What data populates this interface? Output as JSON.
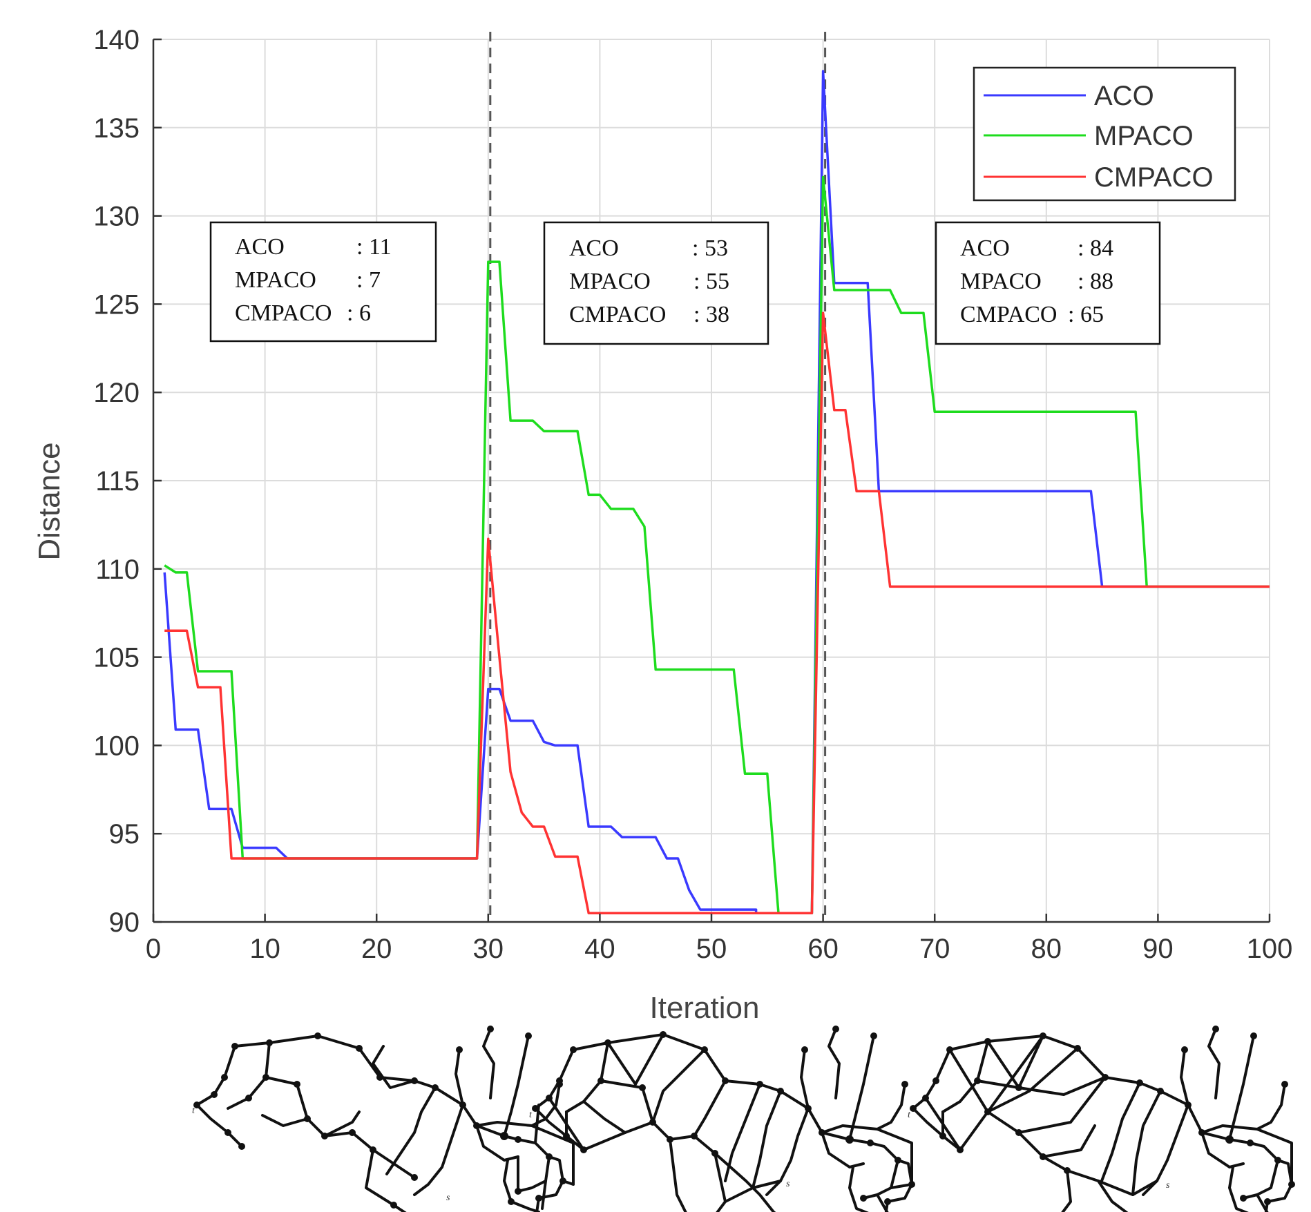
{
  "chart_data": {
    "type": "line",
    "title": "",
    "xlabel": "Iteration",
    "ylabel": "Distance",
    "xlim": [
      0,
      100
    ],
    "ylim": [
      90,
      140
    ],
    "xticks": [
      0,
      10,
      20,
      30,
      40,
      50,
      60,
      70,
      80,
      90,
      100
    ],
    "yticks": [
      90,
      95,
      100,
      105,
      110,
      115,
      120,
      125,
      130,
      135,
      140
    ],
    "grid": true,
    "legend_position": "top-right",
    "change_points": [
      30,
      60
    ],
    "series": [
      {
        "name": "ACO",
        "color": "#3a3aff",
        "points": [
          [
            1,
            109.8
          ],
          [
            2,
            100.9
          ],
          [
            4,
            100.9
          ],
          [
            5,
            96.4
          ],
          [
            7,
            96.4
          ],
          [
            8,
            94.2
          ],
          [
            11,
            94.2
          ],
          [
            12,
            93.6
          ],
          [
            29,
            93.6
          ],
          [
            30,
            103.2
          ],
          [
            31,
            103.2
          ],
          [
            32,
            101.4
          ],
          [
            34,
            101.4
          ],
          [
            35,
            100.2
          ],
          [
            36,
            100.0
          ],
          [
            38,
            100.0
          ],
          [
            39,
            95.4
          ],
          [
            41,
            95.4
          ],
          [
            42,
            94.8
          ],
          [
            45,
            94.8
          ],
          [
            46,
            93.6
          ],
          [
            47,
            93.6
          ],
          [
            48,
            91.8
          ],
          [
            49,
            90.7
          ],
          [
            54,
            90.7
          ],
          [
            54,
            90.5
          ],
          [
            59,
            90.5
          ],
          [
            60,
            138.2
          ],
          [
            61,
            126.2
          ],
          [
            64,
            126.2
          ],
          [
            65,
            114.4
          ],
          [
            84,
            114.4
          ],
          [
            85,
            109.0
          ],
          [
            100,
            109.0
          ]
        ]
      },
      {
        "name": "MPACO",
        "color": "#1edc1e",
        "points": [
          [
            1,
            110.2
          ],
          [
            2,
            109.8
          ],
          [
            3,
            109.8
          ],
          [
            4,
            104.2
          ],
          [
            7,
            104.2
          ],
          [
            8,
            93.6
          ],
          [
            29,
            93.6
          ],
          [
            30,
            127.4
          ],
          [
            31,
            127.4
          ],
          [
            32,
            118.4
          ],
          [
            34,
            118.4
          ],
          [
            35,
            117.8
          ],
          [
            38,
            117.8
          ],
          [
            39,
            114.2
          ],
          [
            40,
            114.2
          ],
          [
            41,
            113.4
          ],
          [
            43,
            113.4
          ],
          [
            44,
            112.4
          ],
          [
            45,
            104.3
          ],
          [
            52,
            104.3
          ],
          [
            53,
            98.4
          ],
          [
            55,
            98.4
          ],
          [
            56,
            90.5
          ],
          [
            59,
            90.5
          ],
          [
            60,
            132.2
          ],
          [
            61,
            125.8
          ],
          [
            65,
            125.8
          ],
          [
            66,
            125.8
          ],
          [
            67,
            124.5
          ],
          [
            69,
            124.5
          ],
          [
            70,
            118.9
          ],
          [
            88,
            118.9
          ],
          [
            89,
            109.0
          ],
          [
            100,
            109.0
          ]
        ]
      },
      {
        "name": "CMPACO",
        "color": "#ff3333",
        "points": [
          [
            1,
            106.5
          ],
          [
            3,
            106.5
          ],
          [
            4,
            103.3
          ],
          [
            6,
            103.3
          ],
          [
            7,
            93.6
          ],
          [
            29,
            93.6
          ],
          [
            30,
            111.7
          ],
          [
            31,
            105.0
          ],
          [
            32,
            98.5
          ],
          [
            33,
            96.2
          ],
          [
            34,
            95.4
          ],
          [
            35,
            95.4
          ],
          [
            36,
            93.7
          ],
          [
            38,
            93.7
          ],
          [
            39,
            90.5
          ],
          [
            59,
            90.5
          ],
          [
            60,
            124.5
          ],
          [
            61,
            119.0
          ],
          [
            62,
            119.0
          ],
          [
            63,
            114.4
          ],
          [
            65,
            114.4
          ],
          [
            66,
            109.0
          ],
          [
            100,
            109.0
          ]
        ]
      }
    ],
    "annotations": [
      {
        "rows": [
          {
            "name": "ACO",
            "value": ": 11"
          },
          {
            "name": "MPACO",
            "value": ": 7"
          },
          {
            "name": "CMPACO",
            "value": ": 6"
          }
        ]
      },
      {
        "rows": [
          {
            "name": "ACO",
            "value": ": 53"
          },
          {
            "name": "MPACO",
            "value": ": 55"
          },
          {
            "name": "CMPACO",
            "value": ": 38"
          }
        ]
      },
      {
        "rows": [
          {
            "name": "ACO",
            "value": ": 84"
          },
          {
            "name": "MPACO",
            "value": ": 88"
          },
          {
            "name": "CMPACO",
            "value": ": 65"
          }
        ]
      }
    ],
    "network_labels": {
      "start": "t",
      "end": "s"
    }
  }
}
